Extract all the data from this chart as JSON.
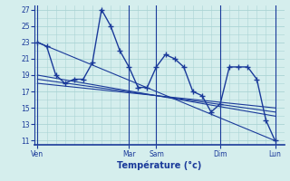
{
  "background_color": "#d5eeed",
  "grid_color": "#aad4d4",
  "line_color": "#1a3a9a",
  "xlabel": "Température (°c)",
  "ylim": [
    10.5,
    27.5
  ],
  "yticks": [
    11,
    13,
    15,
    17,
    19,
    21,
    23,
    25,
    27
  ],
  "x_day_labels": [
    "Ven",
    "Mar",
    "Sam",
    "Dim",
    "Lun"
  ],
  "x_day_positions": [
    0,
    10,
    13,
    20,
    26
  ],
  "xlim": [
    -0.3,
    27.0
  ],
  "main_line_x": [
    0,
    1,
    2,
    3,
    4,
    5,
    6,
    7,
    8,
    9,
    10,
    11,
    12,
    13,
    14,
    15,
    16,
    17,
    18,
    19,
    20,
    21,
    22,
    23,
    24,
    25,
    26
  ],
  "main_line_y": [
    23,
    22.5,
    19,
    18,
    18.5,
    18.5,
    20.5,
    27,
    25,
    22,
    20,
    17.5,
    17.5,
    20,
    21.5,
    21,
    20,
    17,
    16.5,
    14.5,
    15.5,
    20,
    20,
    20,
    18.5,
    13.5,
    11
  ],
  "trend_lines": [
    {
      "x_start": 0,
      "y_start": 23.0,
      "x_end": 26,
      "y_end": 11.0
    },
    {
      "x_start": 0,
      "y_start": 19.0,
      "x_end": 26,
      "y_end": 14.0
    },
    {
      "x_start": 0,
      "y_start": 18.5,
      "x_end": 26,
      "y_end": 14.5
    },
    {
      "x_start": 0,
      "y_start": 18.0,
      "x_end": 26,
      "y_end": 15.0
    }
  ]
}
